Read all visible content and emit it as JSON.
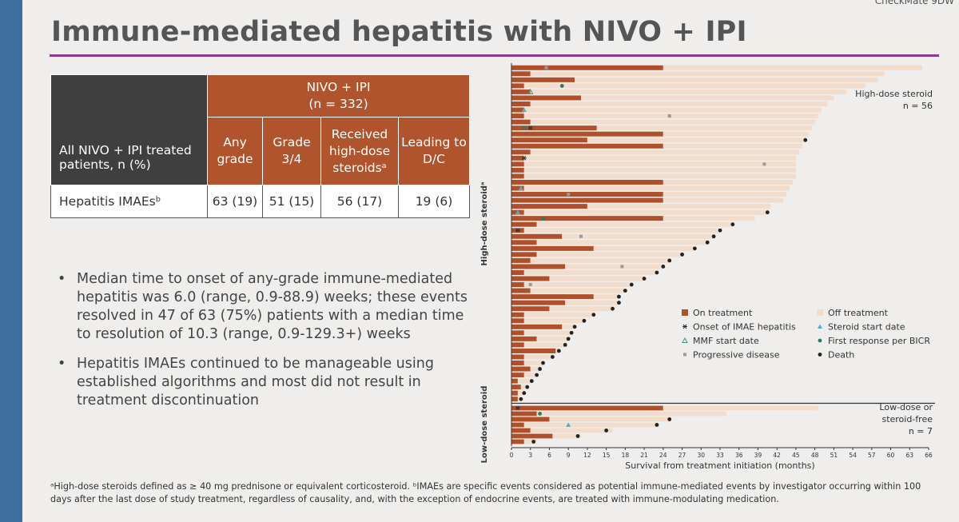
{
  "brand": "CheckMate 9DW",
  "title": "Immune-mediated hepatitis with NIVO + IPI",
  "table": {
    "corner": "All NIVO + IPI treated patients, n (%)",
    "group": "NIVO + IPI",
    "group_n": "(n = 332)",
    "columns": [
      "Any grade",
      "Grade 3/4",
      "Received high-dose steroidsᵃ",
      "Leading to D/C"
    ],
    "rows": [
      [
        "Hepatitis IMAEsᵇ",
        "63 (19)",
        "51 (15)",
        "56 (17)",
        "19 (6)"
      ]
    ]
  },
  "bullets": [
    "Median time to onset of any-grade immune-mediated hepatitis was 6.0 (range, 0.9-88.9) weeks; these events resolved in 47 of 63 (75%) patients with a median time to resolution of 10.3 (range, 0.9-129.3+) weeks",
    "Hepatitis IMAEs continued to be manageable using established algorithms and most did not result in treatment discontinuation"
  ],
  "footnote": "ᵃHigh-dose steroids defined as ≥ 40 mg prednisone or equivalent corticosteroid. ᵇIMAEs are specific events considered as potential immune-mediated events by investigator occurring within 100 days after the last dose of study treatment, regardless of causality, and, with the exception of endocrine events, are treated with immune-modulating medication.",
  "chart_data": [
    {
      "type": "swimmer",
      "side_label": "High-dose steroidᵃ",
      "group_label": [
        "High-dose steroid"
      ],
      "n_label": "n = 56",
      "xlim": [
        0,
        66
      ],
      "series": [
        {
          "name": "On treatment",
          "color": "#b0502a",
          "symbol": "bar",
          "values": [
            24,
            3,
            10,
            2,
            3,
            11,
            3,
            2,
            2,
            3,
            13.5,
            24,
            12,
            24,
            3,
            2,
            2,
            2,
            2,
            24,
            2,
            24,
            24,
            12,
            2,
            24,
            4,
            2,
            8,
            4,
            13,
            4,
            3,
            8.5,
            2,
            6,
            2,
            3,
            13,
            8.5,
            6,
            2,
            2,
            8,
            2,
            4,
            2,
            7,
            2,
            2,
            3,
            2,
            1,
            1.5,
            1,
            1
          ]
        },
        {
          "name": "Off treatment",
          "color": "#f2dccb",
          "symbol": "bar",
          "values": [
            41,
            56,
            48,
            54,
            50,
            40,
            47,
            47,
            46.5,
            45,
            34,
            23,
            34.5,
            22,
            42.5,
            43,
            43,
            43,
            43,
            20.5,
            42,
            19.5,
            19,
            29,
            38.5,
            14.5,
            31,
            31,
            24,
            27,
            16,
            23,
            22,
            15.5,
            21,
            15,
            17,
            15,
            4,
            8.5,
            10,
            11,
            9.5,
            2,
            7.5,
            5,
            6.5,
            0.5,
            4.5,
            3,
            1.5,
            2,
            2.2,
            1,
            1,
            0.5
          ]
        },
        {
          "name": "Onset of IMAE hepatitis",
          "color": "#333333",
          "symbol": "asterisk",
          "values": [
            null,
            null,
            null,
            null,
            null,
            null,
            null,
            null,
            null,
            null,
            3,
            null,
            null,
            null,
            null,
            2,
            null,
            null,
            null,
            null,
            null,
            null,
            null,
            null,
            null,
            null,
            null,
            1,
            null,
            null,
            null,
            null,
            null,
            null,
            null,
            null,
            null,
            null,
            null,
            null,
            null,
            null,
            null,
            null,
            null,
            null,
            null,
            null,
            null,
            null,
            null,
            null,
            null,
            null,
            null,
            null
          ]
        },
        {
          "name": "Steroid start date",
          "color": "#4fb0c6",
          "symbol": "triangle",
          "values": [
            null,
            null,
            null,
            null,
            null,
            null,
            null,
            2,
            null,
            null,
            null,
            null,
            null,
            null,
            null,
            null,
            null,
            null,
            null,
            null,
            1.5,
            null,
            null,
            null,
            1,
            null,
            null,
            null,
            null,
            null,
            null,
            null,
            null,
            null,
            null,
            null,
            null,
            null,
            null,
            null,
            null,
            null,
            null,
            null,
            null,
            null,
            null,
            null,
            null,
            null,
            null,
            null,
            null,
            null,
            null,
            null
          ]
        },
        {
          "name": "MMF start date",
          "color": "#3a9a7a",
          "symbol": "triangle-open",
          "values": [
            null,
            null,
            null,
            null,
            3,
            null,
            null,
            null,
            null,
            null,
            null,
            null,
            null,
            null,
            null,
            null,
            null,
            null,
            null,
            null,
            null,
            null,
            null,
            null,
            null,
            null,
            null,
            null,
            null,
            null,
            null,
            null,
            null,
            null,
            null,
            null,
            null,
            null,
            null,
            null,
            null,
            null,
            null,
            null,
            null,
            null,
            null,
            null,
            null,
            null,
            null,
            null,
            null,
            null,
            null,
            null
          ]
        },
        {
          "name": "First response per BICR",
          "color": "#2a7a66",
          "symbol": "circle",
          "values": [
            null,
            null,
            null,
            8,
            null,
            null,
            null,
            null,
            null,
            null,
            2,
            null,
            null,
            null,
            null,
            null,
            null,
            null,
            null,
            null,
            null,
            null,
            null,
            null,
            null,
            5,
            null,
            null,
            null,
            null,
            null,
            null,
            null,
            null,
            null,
            null,
            null,
            null,
            null,
            null,
            null,
            null,
            null,
            null,
            null,
            null,
            null,
            null,
            null,
            null,
            null,
            null,
            null,
            null,
            null,
            null
          ]
        },
        {
          "name": "Progressive disease",
          "color": "#9a9a9a",
          "symbol": "square",
          "values": [
            5.5,
            null,
            null,
            null,
            null,
            null,
            null,
            null,
            25,
            null,
            null,
            null,
            null,
            null,
            null,
            null,
            40,
            null,
            null,
            null,
            null,
            9,
            null,
            null,
            null,
            null,
            null,
            null,
            11,
            null,
            null,
            null,
            null,
            17.5,
            null,
            null,
            3,
            null,
            null,
            null,
            null,
            null,
            null,
            null,
            null,
            null,
            null,
            null,
            null,
            null,
            null,
            null,
            null,
            null,
            null,
            null
          ]
        },
        {
          "name": "Death",
          "color": "#222222",
          "symbol": "circle",
          "values": [
            null,
            null,
            null,
            null,
            null,
            null,
            null,
            null,
            null,
            null,
            null,
            null,
            46.5,
            null,
            null,
            null,
            null,
            null,
            null,
            null,
            null,
            null,
            null,
            null,
            40.5,
            null,
            35,
            33,
            32,
            31,
            29,
            27,
            25,
            24,
            23,
            21,
            19,
            18,
            17,
            17,
            16,
            13,
            11.5,
            10,
            9.5,
            9,
            8.5,
            7.5,
            6.5,
            5,
            4.5,
            4,
            3.2,
            2.5,
            2,
            1.5
          ]
        }
      ]
    },
    {
      "type": "swimmer",
      "side_label": "Low-dose steroid",
      "group_label": [
        "Low-dose or",
        "steroid-free"
      ],
      "n_label": "n = 7",
      "xlim": [
        0,
        66
      ],
      "xticks": [
        0,
        3,
        6,
        9,
        12,
        15,
        18,
        21,
        24,
        27,
        30,
        33,
        36,
        39,
        42,
        45,
        48,
        51,
        54,
        57,
        60,
        63,
        66
      ],
      "xlabel": "Survival from treatment initiation (months)",
      "series": [
        {
          "name": "On treatment",
          "color": "#b0502a",
          "symbol": "bar",
          "values": [
            24,
            4,
            6,
            2,
            3,
            6.5,
            2
          ]
        },
        {
          "name": "Off treatment",
          "color": "#f2dccb",
          "symbol": "bar",
          "values": [
            24.5,
            30,
            19,
            21,
            13,
            4.5,
            2
          ]
        },
        {
          "name": "Onset of IMAE hepatitis",
          "color": "#333333",
          "symbol": "asterisk",
          "values": [
            1,
            null,
            null,
            null,
            null,
            null,
            null
          ]
        },
        {
          "name": "Steroid start date",
          "color": "#4fb0c6",
          "symbol": "triangle",
          "values": [
            null,
            null,
            null,
            9,
            null,
            null,
            null
          ]
        },
        {
          "name": "MMF start date",
          "color": "#3a9a7a",
          "symbol": "triangle-open",
          "values": [
            null,
            null,
            null,
            null,
            null,
            null,
            null
          ]
        },
        {
          "name": "First response per BICR",
          "color": "#2a7a66",
          "symbol": "circle",
          "values": [
            null,
            4.5,
            null,
            null,
            null,
            null,
            null
          ]
        },
        {
          "name": "Progressive disease",
          "color": "#9a9a9a",
          "symbol": "square",
          "values": [
            null,
            null,
            null,
            null,
            null,
            null,
            null
          ]
        },
        {
          "name": "Death",
          "color": "#222222",
          "symbol": "circle",
          "values": [
            null,
            null,
            25,
            23,
            15,
            10.5,
            3.5
          ]
        }
      ]
    }
  ]
}
